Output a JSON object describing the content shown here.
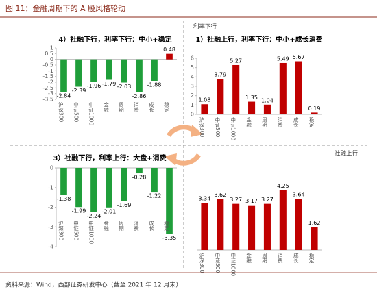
{
  "title": "图 11：金融周期下的 A 股风格轮动",
  "source": "资料来源：Wind，西部证券研发中心（截至 2021 年 12 月末）",
  "axes": {
    "y_label": "利率下行",
    "x_label": "社融上行"
  },
  "chart_data": [
    {
      "type": "bar",
      "title": "4）社融下行，利率下行：中小+稳定",
      "categories": [
        "沪深300",
        "中证500",
        "中证1000",
        "金融",
        "周期",
        "消费",
        "成长",
        "稳定"
      ],
      "values": [
        -2.84,
        -2.39,
        -1.96,
        -1.79,
        -2.03,
        -2.86,
        -1.88,
        0.48
      ],
      "colors": [
        "#1f9e3a",
        "#1f9e3a",
        "#1f9e3a",
        "#1f9e3a",
        "#1f9e3a",
        "#1f9e3a",
        "#1f9e3a",
        "#c00000"
      ],
      "ylim": [
        -3.5,
        1
      ],
      "yticks": [
        -3.5,
        -3,
        -2.5,
        -2,
        -1.5,
        -1,
        -0.5,
        0,
        0.5,
        1
      ]
    },
    {
      "type": "bar",
      "title": "1）社融上行，利率下行：中小+成长消费",
      "categories": [
        "沪深300",
        "中证500",
        "中证1000",
        "金融",
        "周期",
        "消费",
        "成长",
        "稳定"
      ],
      "values": [
        1.08,
        3.79,
        5.27,
        1.35,
        1.04,
        5.49,
        5.67,
        0.19
      ],
      "colors": [
        "#c00000",
        "#c00000",
        "#c00000",
        "#c00000",
        "#c00000",
        "#c00000",
        "#c00000",
        "#c00000"
      ],
      "ylim": [
        0,
        6
      ],
      "yticks": [
        0,
        1,
        2,
        3,
        4,
        5,
        6
      ]
    },
    {
      "type": "bar",
      "title": "3）社融下行，利率上行：大盘+消费",
      "categories": [
        "沪深300",
        "中证500",
        "中证1000",
        "金融",
        "周期",
        "消费",
        "成长",
        "稳定"
      ],
      "values": [
        -1.38,
        -1.99,
        -2.24,
        -2.01,
        -1.69,
        -0.28,
        -1.22,
        -3.35
      ],
      "colors": [
        "#1f9e3a",
        "#1f9e3a",
        "#1f9e3a",
        "#1f9e3a",
        "#1f9e3a",
        "#1f9e3a",
        "#1f9e3a",
        "#1f9e3a"
      ],
      "ylim": [
        -4,
        0
      ],
      "yticks": [
        -4,
        -3,
        -2,
        -1,
        0
      ]
    },
    {
      "type": "bar",
      "categories": [
        "沪深300",
        "中证500",
        "中证1000",
        "金融",
        "周期",
        "消费",
        "成长",
        "稳定"
      ],
      "values": [
        3.34,
        3.62,
        3.27,
        3.17,
        3.27,
        4.25,
        3.64,
        1.62
      ],
      "colors": [
        "#c00000",
        "#c00000",
        "#c00000",
        "#c00000",
        "#c00000",
        "#c00000",
        "#c00000",
        "#c00000"
      ],
      "ylim": [
        0,
        5
      ]
    }
  ]
}
